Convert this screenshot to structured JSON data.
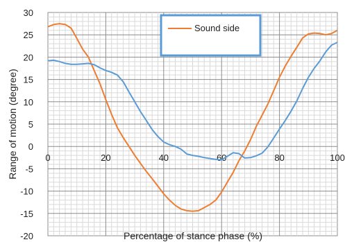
{
  "chart_data": {
    "type": "line",
    "title": "",
    "xlabel": "Percentage of stance phase (%)",
    "ylabel": "Range of motion (degree)",
    "xlim": [
      0,
      100
    ],
    "ylim": [
      -20,
      30
    ],
    "x_ticks": [
      0,
      20,
      40,
      60,
      80,
      100
    ],
    "y_ticks": [
      30,
      25,
      20,
      15,
      10,
      5,
      0,
      -5,
      -10,
      -15,
      -20
    ],
    "grid": true,
    "legend_position": "top-center",
    "series": [
      {
        "name": "Sound side",
        "color": "#ED7D31",
        "x": [
          0,
          2,
          4,
          6,
          8,
          10,
          12,
          14,
          16,
          18,
          20,
          22,
          24,
          26,
          28,
          30,
          32,
          34,
          36,
          38,
          40,
          42,
          44,
          46,
          48,
          50,
          52,
          54,
          56,
          58,
          60,
          62,
          64,
          66,
          68,
          70,
          72,
          74,
          76,
          78,
          80,
          82,
          84,
          86,
          88,
          90,
          92,
          94,
          96,
          98,
          100
        ],
        "values": [
          26.8,
          27.3,
          27.5,
          27.3,
          26.5,
          24.2,
          21.8,
          20.0,
          17.0,
          14.0,
          10.5,
          7.2,
          4.2,
          2.0,
          0.0,
          -2.0,
          -3.8,
          -5.6,
          -7.2,
          -8.9,
          -10.6,
          -12.0,
          -13.2,
          -14.0,
          -14.4,
          -14.5,
          -14.4,
          -13.7,
          -13.0,
          -12.0,
          -10.2,
          -8.0,
          -5.8,
          -3.2,
          -1.0,
          1.5,
          4.5,
          7.0,
          9.5,
          12.5,
          15.5,
          18.0,
          20.2,
          22.2,
          24.3,
          25.2,
          25.4,
          25.3,
          25.0,
          25.3,
          26.0
        ]
      },
      {
        "name": "",
        "color": "#5B9BD5",
        "x": [
          0,
          2,
          4,
          6,
          8,
          10,
          12,
          14,
          16,
          18,
          20,
          22,
          24,
          26,
          28,
          30,
          32,
          34,
          36,
          38,
          40,
          42,
          44,
          46,
          48,
          50,
          52,
          54,
          56,
          58,
          60,
          62,
          64,
          66,
          68,
          70,
          72,
          74,
          76,
          78,
          80,
          82,
          84,
          86,
          88,
          90,
          92,
          94,
          96,
          98,
          100
        ],
        "values": [
          19.2,
          19.3,
          19.0,
          18.6,
          18.4,
          18.4,
          18.5,
          18.6,
          18.3,
          17.6,
          17.0,
          16.6,
          16.0,
          14.5,
          12.2,
          10.0,
          7.8,
          5.8,
          3.8,
          2.2,
          1.0,
          0.4,
          0.0,
          -0.6,
          -1.7,
          -2.0,
          -2.2,
          -2.5,
          -2.7,
          -2.9,
          -3.0,
          -2.2,
          -1.4,
          -1.6,
          -2.6,
          -2.5,
          -2.1,
          -1.5,
          -0.1,
          1.9,
          3.9,
          5.8,
          7.9,
          10.2,
          13.0,
          15.5,
          17.5,
          19.2,
          21.2,
          22.7,
          23.3
        ]
      }
    ]
  }
}
